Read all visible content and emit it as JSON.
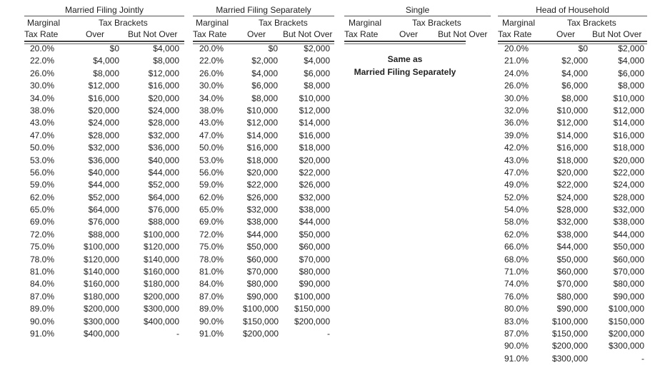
{
  "headers": {
    "marginal": "Marginal",
    "tax_rate": "Tax Rate",
    "tax_brackets": "Tax Brackets",
    "over": "Over",
    "but_not_over": "But Not Over"
  },
  "married_filing_jointly": {
    "title": "Married Filing Jointly",
    "rows": [
      [
        "20.0%",
        "$0",
        "$4,000"
      ],
      [
        "22.0%",
        "$4,000",
        "$8,000"
      ],
      [
        "26.0%",
        "$8,000",
        "$12,000"
      ],
      [
        "30.0%",
        "$12,000",
        "$16,000"
      ],
      [
        "34.0%",
        "$16,000",
        "$20,000"
      ],
      [
        "38.0%",
        "$20,000",
        "$24,000"
      ],
      [
        "43.0%",
        "$24,000",
        "$28,000"
      ],
      [
        "47.0%",
        "$28,000",
        "$32,000"
      ],
      [
        "50.0%",
        "$32,000",
        "$36,000"
      ],
      [
        "53.0%",
        "$36,000",
        "$40,000"
      ],
      [
        "56.0%",
        "$40,000",
        "$44,000"
      ],
      [
        "59.0%",
        "$44,000",
        "$52,000"
      ],
      [
        "62.0%",
        "$52,000",
        "$64,000"
      ],
      [
        "65.0%",
        "$64,000",
        "$76,000"
      ],
      [
        "69.0%",
        "$76,000",
        "$88,000"
      ],
      [
        "72.0%",
        "$88,000",
        "$100,000"
      ],
      [
        "75.0%",
        "$100,000",
        "$120,000"
      ],
      [
        "78.0%",
        "$120,000",
        "$140,000"
      ],
      [
        "81.0%",
        "$140,000",
        "$160,000"
      ],
      [
        "84.0%",
        "$160,000",
        "$180,000"
      ],
      [
        "87.0%",
        "$180,000",
        "$200,000"
      ],
      [
        "89.0%",
        "$200,000",
        "$300,000"
      ],
      [
        "90.0%",
        "$300,000",
        "$400,000"
      ],
      [
        "91.0%",
        "$400,000",
        "-"
      ]
    ]
  },
  "married_filing_separately": {
    "title": "Married Filing Separately",
    "rows": [
      [
        "20.0%",
        "$0",
        "$2,000"
      ],
      [
        "22.0%",
        "$2,000",
        "$4,000"
      ],
      [
        "26.0%",
        "$4,000",
        "$6,000"
      ],
      [
        "30.0%",
        "$6,000",
        "$8,000"
      ],
      [
        "34.0%",
        "$8,000",
        "$10,000"
      ],
      [
        "38.0%",
        "$10,000",
        "$12,000"
      ],
      [
        "43.0%",
        "$12,000",
        "$14,000"
      ],
      [
        "47.0%",
        "$14,000",
        "$16,000"
      ],
      [
        "50.0%",
        "$16,000",
        "$18,000"
      ],
      [
        "53.0%",
        "$18,000",
        "$20,000"
      ],
      [
        "56.0%",
        "$20,000",
        "$22,000"
      ],
      [
        "59.0%",
        "$22,000",
        "$26,000"
      ],
      [
        "62.0%",
        "$26,000",
        "$32,000"
      ],
      [
        "65.0%",
        "$32,000",
        "$38,000"
      ],
      [
        "69.0%",
        "$38,000",
        "$44,000"
      ],
      [
        "72.0%",
        "$44,000",
        "$50,000"
      ],
      [
        "75.0%",
        "$50,000",
        "$60,000"
      ],
      [
        "78.0%",
        "$60,000",
        "$70,000"
      ],
      [
        "81.0%",
        "$70,000",
        "$80,000"
      ],
      [
        "84.0%",
        "$80,000",
        "$90,000"
      ],
      [
        "87.0%",
        "$90,000",
        "$100,000"
      ],
      [
        "89.0%",
        "$100,000",
        "$150,000"
      ],
      [
        "90.0%",
        "$150,000",
        "$200,000"
      ],
      [
        "91.0%",
        "$200,000",
        "-"
      ]
    ]
  },
  "single": {
    "title": "Single",
    "note_line1": "Same as",
    "note_line2": "Married Filing Separately"
  },
  "head_of_household": {
    "title": "Head of Household",
    "rows": [
      [
        "20.0%",
        "$0",
        "$2,000"
      ],
      [
        "21.0%",
        "$2,000",
        "$4,000"
      ],
      [
        "24.0%",
        "$4,000",
        "$6,000"
      ],
      [
        "26.0%",
        "$6,000",
        "$8,000"
      ],
      [
        "30.0%",
        "$8,000",
        "$10,000"
      ],
      [
        "32.0%",
        "$10,000",
        "$12,000"
      ],
      [
        "36.0%",
        "$12,000",
        "$14,000"
      ],
      [
        "39.0%",
        "$14,000",
        "$16,000"
      ],
      [
        "42.0%",
        "$16,000",
        "$18,000"
      ],
      [
        "43.0%",
        "$18,000",
        "$20,000"
      ],
      [
        "47.0%",
        "$20,000",
        "$22,000"
      ],
      [
        "49.0%",
        "$22,000",
        "$24,000"
      ],
      [
        "52.0%",
        "$24,000",
        "$28,000"
      ],
      [
        "54.0%",
        "$28,000",
        "$32,000"
      ],
      [
        "58.0%",
        "$32,000",
        "$38,000"
      ],
      [
        "62.0%",
        "$38,000",
        "$44,000"
      ],
      [
        "66.0%",
        "$44,000",
        "$50,000"
      ],
      [
        "68.0%",
        "$50,000",
        "$60,000"
      ],
      [
        "71.0%",
        "$60,000",
        "$70,000"
      ],
      [
        "74.0%",
        "$70,000",
        "$80,000"
      ],
      [
        "76.0%",
        "$80,000",
        "$90,000"
      ],
      [
        "80.0%",
        "$90,000",
        "$100,000"
      ],
      [
        "83.0%",
        "$100,000",
        "$150,000"
      ],
      [
        "87.0%",
        "$150,000",
        "$200,000"
      ],
      [
        "90.0%",
        "$200,000",
        "$300,000"
      ],
      [
        "91.0%",
        "$300,000",
        "-"
      ]
    ]
  }
}
